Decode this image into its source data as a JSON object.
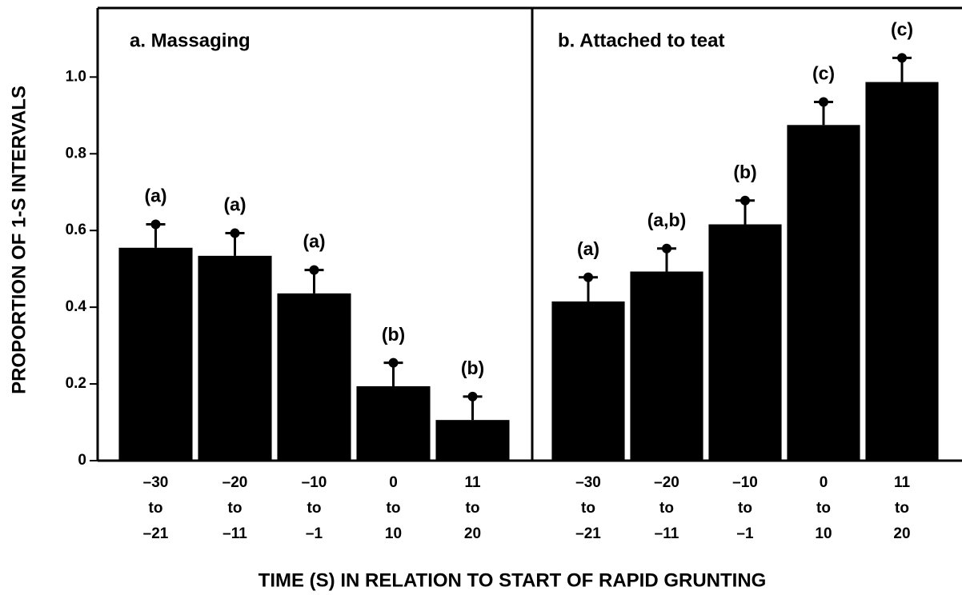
{
  "axis_titles": {
    "x": "TIME (S) IN RELATION  TO START OF RAPID GRUNTING",
    "y": "PROPORTION OF 1-S INTERVALS"
  },
  "chart_data": [
    {
      "type": "bar",
      "title": "a. Massaging",
      "categories": [
        [
          "–30",
          "to",
          "–21"
        ],
        [
          "–20",
          "to",
          "–11"
        ],
        [
          "–10",
          "to",
          "–1"
        ],
        [
          "0",
          "to",
          "10"
        ],
        [
          "11",
          "to",
          "20"
        ]
      ],
      "values": [
        0.555,
        0.534,
        0.436,
        0.194,
        0.106
      ],
      "errors": [
        0.061,
        0.059,
        0.061,
        0.061,
        0.061
      ],
      "annotations": [
        "(a)",
        "(a)",
        "(a)",
        "(b)",
        "(b)"
      ],
      "color": "#000000",
      "ylim": [
        0,
        1.18
      ],
      "yticks": [
        0,
        0.2,
        0.4,
        0.6,
        0.8,
        {
          "value": 1,
          "label": "1.0"
        }
      ]
    },
    {
      "type": "bar",
      "title": "b. Attached to teat",
      "categories": [
        [
          "–30",
          "to",
          "–21"
        ],
        [
          "–20",
          "to",
          "–11"
        ],
        [
          "–10",
          "to",
          "–1"
        ],
        [
          "0",
          "to",
          "10"
        ],
        [
          "11",
          "to",
          "20"
        ]
      ],
      "values": [
        0.415,
        0.493,
        0.616,
        0.875,
        0.987
      ],
      "errors": [
        0.063,
        0.06,
        0.062,
        0.06,
        0.063
      ],
      "annotations": [
        "(a)",
        "(a,b)",
        "(b)",
        "(c)",
        "(c)"
      ],
      "color": "#000000",
      "ylim": [
        0,
        1.18
      ]
    }
  ]
}
